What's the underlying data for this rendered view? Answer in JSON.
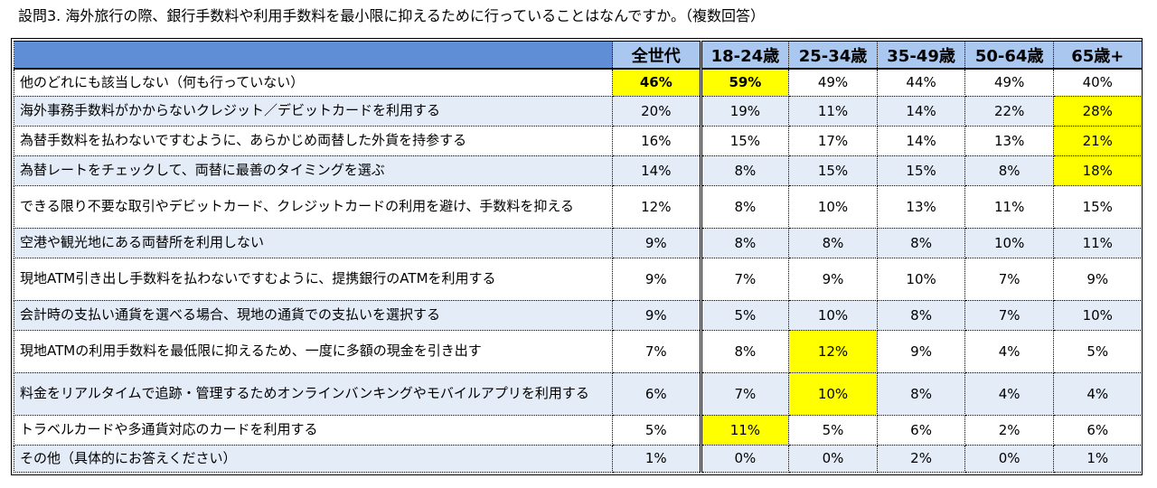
{
  "title": "設問3. 海外旅行の際、銀行手数料や利用手数料を最小限に抑えるために行っていることはなんですか。（複数回答）",
  "colors": {
    "header_bg": "#a9c7ef",
    "corner_bg": "#5f8ed6",
    "row_alt_bg": "#e4ecf8",
    "highlight": "#ffff00"
  },
  "columns": [
    "全世代",
    "18-24歳",
    "25-34歳",
    "35-49歳",
    "50-64歳",
    "65歳+"
  ],
  "rows": [
    {
      "label": "他のどれにも該当しない（何も行っていない）",
      "values": [
        "46%",
        "59%",
        "49%",
        "44%",
        "49%",
        "40%"
      ],
      "highlight": [
        0,
        1
      ],
      "bold": [
        0,
        1
      ]
    },
    {
      "label": "海外事務手数料がかからないクレジット／デビットカードを利用する",
      "values": [
        "20%",
        "19%",
        "11%",
        "14%",
        "22%",
        "28%"
      ],
      "highlight": [
        5
      ]
    },
    {
      "label": "為替手数料を払わないですむように、あらかじめ両替した外貨を持参する",
      "values": [
        "16%",
        "15%",
        "17%",
        "14%",
        "13%",
        "21%"
      ],
      "highlight": [
        5
      ]
    },
    {
      "label": "為替レートをチェックして、両替に最善のタイミングを選ぶ",
      "values": [
        "14%",
        "8%",
        "15%",
        "15%",
        "8%",
        "18%"
      ],
      "highlight": [
        5
      ]
    },
    {
      "label": "できる限り不要な取引やデビットカード、クレジットカードの利用を避け、手数料を抑える",
      "values": [
        "12%",
        "8%",
        "10%",
        "13%",
        "11%",
        "15%"
      ],
      "highlight": []
    },
    {
      "label": "空港や観光地にある両替所を利用しない",
      "values": [
        "9%",
        "8%",
        "8%",
        "8%",
        "10%",
        "11%"
      ],
      "highlight": []
    },
    {
      "label": "現地ATM引き出し手数料を払わないですむように、提携銀行のATMを利用する",
      "values": [
        "9%",
        "7%",
        "9%",
        "10%",
        "7%",
        "9%"
      ],
      "highlight": []
    },
    {
      "label": "会計時の支払い通貨を選べる場合、現地の通貨での支払いを選択する",
      "values": [
        "9%",
        "5%",
        "10%",
        "8%",
        "7%",
        "10%"
      ],
      "highlight": []
    },
    {
      "label": "現地ATMの利用手数料を最低限に抑えるため、一度に多額の現金を引き出す",
      "values": [
        "7%",
        "8%",
        "12%",
        "9%",
        "4%",
        "5%"
      ],
      "highlight": [
        2
      ]
    },
    {
      "label": "料金をリアルタイムで追跡・管理するためオンラインバンキングやモバイルアプリを利用する",
      "values": [
        "6%",
        "7%",
        "10%",
        "8%",
        "4%",
        "4%"
      ],
      "highlight": [
        2
      ]
    },
    {
      "label": "トラベルカードや多通貨対応のカードを利用する",
      "values": [
        "5%",
        "11%",
        "5%",
        "6%",
        "2%",
        "6%"
      ],
      "highlight": [
        1
      ]
    },
    {
      "label": "その他（具体的にお答えください）",
      "values": [
        "1%",
        "0%",
        "0%",
        "2%",
        "0%",
        "1%"
      ],
      "highlight": []
    }
  ]
}
